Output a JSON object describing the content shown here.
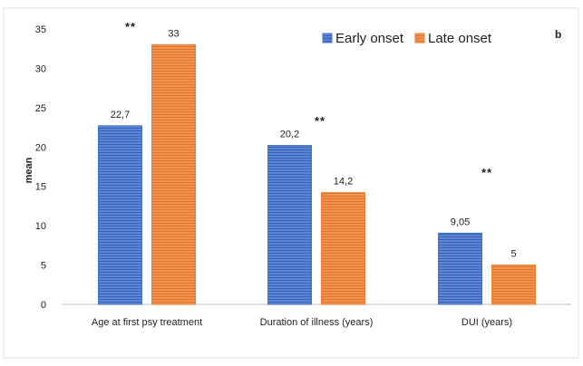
{
  "chart_data": {
    "type": "bar",
    "panel_label": "b",
    "ylabel": "mean",
    "xlabel": "",
    "ylim": [
      0,
      35
    ],
    "yticks": [
      0,
      5,
      10,
      15,
      20,
      25,
      30,
      35
    ],
    "grid": false,
    "legend_position": "top-right",
    "categories": [
      "Age at first psy treatment",
      "Duration of illness (years)",
      "DUI (years)"
    ],
    "series": [
      {
        "name": "Early onset",
        "color": "#4472c4",
        "values": [
          22.7,
          20.2,
          9.05
        ],
        "value_labels": [
          "22,7",
          "20,2",
          "9,05"
        ]
      },
      {
        "name": "Late onset",
        "color": "#ed7d31",
        "values": [
          33,
          14.2,
          5
        ],
        "value_labels": [
          "33",
          "14,2",
          "5"
        ]
      }
    ],
    "significance": [
      "**",
      "**",
      "**"
    ]
  }
}
